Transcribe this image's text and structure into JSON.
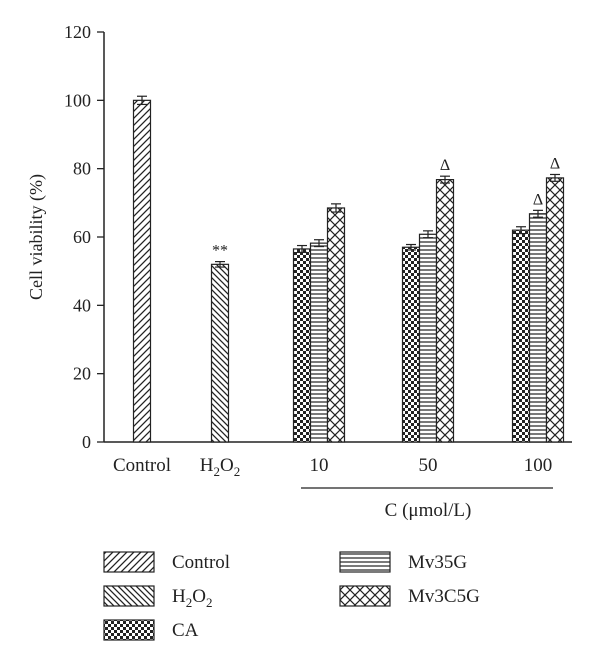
{
  "chart_data": {
    "type": "bar",
    "ylabel": "Cell viability (%)",
    "ylim": [
      0,
      120
    ],
    "yticks": [
      0,
      20,
      40,
      60,
      80,
      100,
      120
    ],
    "group_axis_label": "C (μmol/L)",
    "groups": [
      {
        "label": "Control",
        "bars": [
          {
            "series": "Control",
            "value": 100,
            "err": 1.2
          }
        ]
      },
      {
        "label": "H2O2",
        "label_main": "H",
        "label_sub1": "2",
        "label_mid": "O",
        "label_sub2": "2",
        "bars": [
          {
            "series": "H2O2",
            "value": 52,
            "err": 0.8,
            "mark": "**"
          }
        ]
      },
      {
        "label": "10",
        "bars": [
          {
            "series": "CA",
            "value": 56.5,
            "err": 1.0
          },
          {
            "series": "Mv35G",
            "value": 58.2,
            "err": 1.0
          },
          {
            "series": "Mv3C5G",
            "value": 68.5,
            "err": 1.2
          }
        ]
      },
      {
        "label": "50",
        "bars": [
          {
            "series": "CA",
            "value": 57,
            "err": 0.8
          },
          {
            "series": "Mv35G",
            "value": 60.8,
            "err": 1.0
          },
          {
            "series": "Mv3C5G",
            "value": 76.8,
            "err": 1.0,
            "mark": "Δ"
          }
        ]
      },
      {
        "label": "100",
        "bars": [
          {
            "series": "CA",
            "value": 62,
            "err": 1.0
          },
          {
            "series": "Mv35G",
            "value": 66.8,
            "err": 1.0,
            "mark": "Δ"
          },
          {
            "series": "Mv3C5G",
            "value": 77.3,
            "err": 1.0,
            "mark": "Δ"
          }
        ]
      }
    ],
    "series": [
      {
        "name": "Control",
        "pattern": "diag-up"
      },
      {
        "name": "H2O2",
        "pattern": "diag-down"
      },
      {
        "name": "CA",
        "pattern": "checker"
      },
      {
        "name": "Mv35G",
        "pattern": "horizontal"
      },
      {
        "name": "Mv3C5G",
        "pattern": "crosshatch"
      }
    ],
    "legend_position": "bottom"
  }
}
